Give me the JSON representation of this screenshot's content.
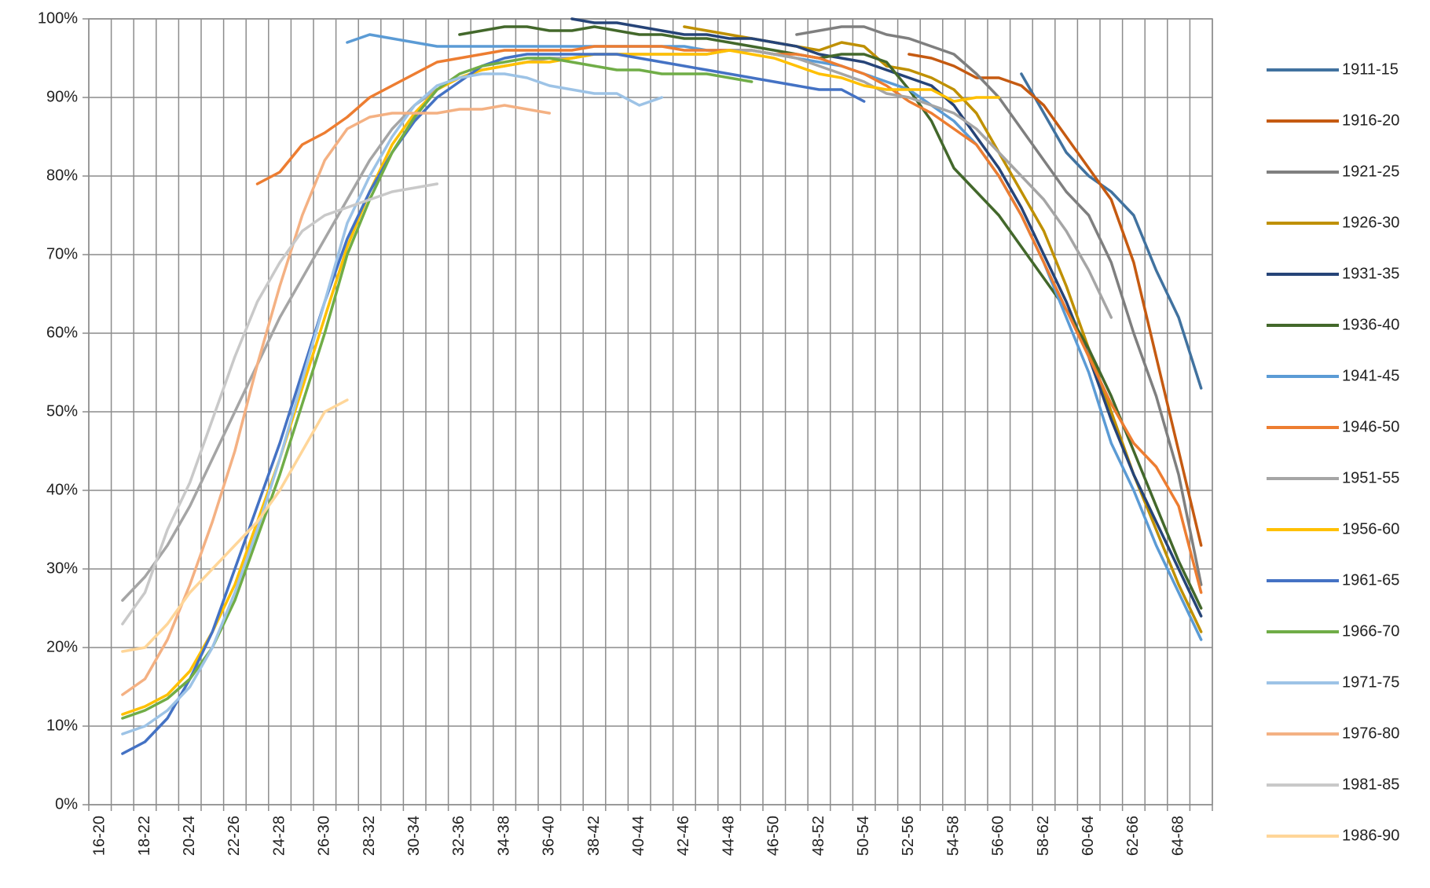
{
  "chart_data": {
    "type": "line",
    "categories": [
      "16-20",
      null,
      "18-22",
      null,
      "20-24",
      null,
      "22-26",
      null,
      "24-28",
      null,
      "26-30",
      null,
      "28-32",
      null,
      "30-34",
      null,
      "32-36",
      null,
      "34-38",
      null,
      "36-40",
      null,
      "38-42",
      null,
      "40-44",
      null,
      "42-46",
      null,
      "44-48",
      null,
      "46-50",
      null,
      "48-52",
      null,
      "50-54",
      null,
      "52-56",
      null,
      "54-58",
      null,
      "56-60",
      null,
      "58-62",
      null,
      "60-64",
      null,
      "62-66",
      null,
      "64-68",
      null
    ],
    "ylim": [
      0,
      100
    ],
    "yticks": [
      {
        "value": 0,
        "label": "0%"
      },
      {
        "value": 10,
        "label": "10%"
      },
      {
        "value": 20,
        "label": "20%"
      },
      {
        "value": 30,
        "label": "30%"
      },
      {
        "value": 40,
        "label": "40%"
      },
      {
        "value": 50,
        "label": "50%"
      },
      {
        "value": 60,
        "label": "60%"
      },
      {
        "value": 70,
        "label": "70%"
      },
      {
        "value": 80,
        "label": "80%"
      },
      {
        "value": 90,
        "label": "90%"
      },
      {
        "value": 100,
        "label": "100%"
      }
    ],
    "grid": true,
    "legend": "right",
    "series": [
      {
        "name": "1911-15",
        "color": "#41729f",
        "values": [
          null,
          null,
          null,
          null,
          null,
          null,
          null,
          null,
          null,
          null,
          null,
          null,
          null,
          null,
          null,
          null,
          null,
          null,
          null,
          null,
          null,
          null,
          null,
          null,
          null,
          null,
          null,
          null,
          null,
          null,
          null,
          null,
          null,
          null,
          null,
          null,
          null,
          null,
          null,
          null,
          null,
          93,
          88,
          83,
          80,
          78,
          75,
          68,
          62,
          53
        ]
      },
      {
        "name": "1916-20",
        "color": "#c55a11",
        "values": [
          null,
          null,
          null,
          null,
          null,
          null,
          null,
          null,
          null,
          null,
          null,
          null,
          null,
          null,
          null,
          null,
          null,
          null,
          null,
          null,
          null,
          null,
          null,
          null,
          null,
          null,
          null,
          null,
          null,
          null,
          null,
          null,
          null,
          null,
          null,
          null,
          95.5,
          95,
          94,
          92.5,
          92.5,
          91.5,
          89,
          85,
          81,
          77,
          69,
          57,
          45,
          33
        ]
      },
      {
        "name": "1921-25",
        "color": "#7f7f7f",
        "values": [
          null,
          null,
          null,
          null,
          null,
          null,
          null,
          null,
          null,
          null,
          null,
          null,
          null,
          null,
          null,
          null,
          null,
          null,
          null,
          null,
          null,
          null,
          null,
          null,
          null,
          null,
          null,
          null,
          null,
          null,
          null,
          98,
          98.5,
          99,
          99,
          98,
          97.5,
          96.5,
          95.5,
          93,
          90,
          86,
          82,
          78,
          75,
          69,
          60,
          52,
          42,
          28
        ]
      },
      {
        "name": "1926-30",
        "color": "#bf9000",
        "values": [
          null,
          null,
          null,
          null,
          null,
          null,
          null,
          null,
          null,
          null,
          null,
          null,
          null,
          null,
          null,
          null,
          null,
          null,
          null,
          null,
          null,
          null,
          null,
          null,
          null,
          null,
          99,
          98.5,
          98,
          97.5,
          97,
          96.5,
          96,
          97,
          96.5,
          94,
          93.5,
          92.5,
          91,
          88,
          83,
          78,
          73,
          66,
          58,
          50,
          42,
          35,
          28,
          22
        ]
      },
      {
        "name": "1931-35",
        "color": "#264478",
        "values": [
          null,
          null,
          null,
          null,
          null,
          null,
          null,
          null,
          null,
          null,
          null,
          null,
          null,
          null,
          null,
          null,
          null,
          null,
          null,
          null,
          null,
          100,
          99.5,
          99.5,
          99,
          98.5,
          98,
          98,
          97.5,
          97.5,
          97,
          96.5,
          95.5,
          95,
          94.5,
          93.5,
          92.5,
          91.5,
          89,
          85,
          81,
          76,
          70,
          64,
          57,
          49,
          42,
          36,
          30,
          24
        ]
      },
      {
        "name": "1936-40",
        "color": "#43682b",
        "values": [
          null,
          null,
          null,
          null,
          null,
          null,
          null,
          null,
          null,
          null,
          null,
          null,
          null,
          null,
          null,
          null,
          98,
          98.5,
          99,
          99,
          98.5,
          98.5,
          99,
          98.5,
          98,
          98,
          97.5,
          97.5,
          97,
          96.5,
          96,
          95.5,
          95,
          95.5,
          95.5,
          94.5,
          91,
          87,
          81,
          78,
          75,
          71,
          67,
          63,
          58,
          52,
          45,
          38,
          31,
          25
        ]
      },
      {
        "name": "1941-45",
        "color": "#5b9bd5",
        "values": [
          null,
          null,
          null,
          null,
          null,
          null,
          null,
          null,
          null,
          null,
          null,
          97,
          98,
          97.5,
          97,
          96.5,
          96.5,
          96.5,
          96.5,
          96.5,
          96.5,
          96.5,
          96.5,
          96.5,
          96.5,
          96.5,
          96.5,
          96,
          96,
          96,
          95.5,
          95,
          94.5,
          94,
          93,
          92,
          91,
          89,
          87,
          84,
          80,
          75,
          69,
          62,
          55,
          46,
          40,
          33,
          27,
          21
        ]
      },
      {
        "name": "1946-50",
        "color": "#ed7d31",
        "values": [
          null,
          null,
          null,
          null,
          null,
          null,
          null,
          79,
          80.5,
          84,
          85.5,
          87.5,
          90,
          91.5,
          93,
          94.5,
          95,
          95.5,
          96,
          96,
          96,
          96,
          96.5,
          96.5,
          96.5,
          96.5,
          96,
          96,
          96,
          96,
          95.5,
          95.5,
          95,
          94,
          93,
          91.5,
          89.5,
          88,
          86,
          84,
          80,
          75,
          69,
          63,
          57,
          51,
          46,
          43,
          38,
          27
        ]
      },
      {
        "name": "1951-55",
        "color": "#a5a5a5",
        "values": [
          null,
          26,
          29,
          33,
          38,
          44,
          50,
          56,
          62,
          67,
          72,
          77,
          82,
          86,
          89,
          91,
          92.5,
          93.5,
          94,
          94.5,
          95,
          95,
          95.5,
          95.5,
          95.5,
          95.5,
          95.5,
          95.5,
          96,
          96,
          95.5,
          95,
          94,
          93,
          92,
          90.5,
          90,
          89,
          88,
          86,
          83,
          80,
          77,
          73,
          68,
          62,
          null,
          null,
          null,
          null
        ]
      },
      {
        "name": "1956-60",
        "color": "#ffc000",
        "values": [
          null,
          11.5,
          12.5,
          14,
          17,
          22,
          28,
          36,
          44,
          53,
          62,
          71,
          78,
          84,
          88,
          91,
          92.5,
          93.5,
          94,
          94.5,
          94.5,
          95,
          95.5,
          95.5,
          95.5,
          95.5,
          95.5,
          95.5,
          96,
          95.5,
          95,
          94,
          93,
          92.5,
          91.5,
          91,
          91,
          91,
          89.5,
          90,
          90,
          null,
          null,
          null,
          null,
          null,
          null,
          null,
          null,
          null
        ]
      },
      {
        "name": "1961-65",
        "color": "#4472c4",
        "values": [
          null,
          6.5,
          8,
          11,
          16,
          22,
          30,
          38,
          46,
          55,
          64,
          72,
          78,
          83,
          87,
          90,
          92,
          94,
          95,
          95.5,
          95.5,
          95.5,
          95.5,
          95.5,
          95,
          94.5,
          94,
          93.5,
          93,
          92.5,
          92,
          91.5,
          91,
          91,
          89.5,
          null,
          null,
          null,
          null,
          null,
          null,
          null,
          null,
          null,
          null,
          null,
          null,
          null,
          null,
          null
        ]
      },
      {
        "name": "1966-70",
        "color": "#70ad47",
        "values": [
          null,
          11,
          12,
          13.5,
          16,
          20,
          26,
          34,
          42,
          51,
          60,
          70,
          77,
          83,
          87.5,
          91,
          93,
          94,
          94.5,
          95,
          95,
          94.5,
          94,
          93.5,
          93.5,
          93,
          93,
          93,
          92.5,
          92,
          null,
          null,
          null,
          null,
          null,
          null,
          null,
          null,
          null,
          null,
          null,
          null,
          null,
          null,
          null,
          null,
          null,
          null,
          null,
          null
        ]
      },
      {
        "name": "1971-75",
        "color": "#9dc3e6",
        "values": [
          null,
          9,
          10,
          12,
          15,
          20,
          27,
          35,
          44,
          54,
          64,
          74,
          80,
          85,
          89,
          91.5,
          92.5,
          93,
          93,
          92.5,
          91.5,
          91,
          90.5,
          90.5,
          89,
          90,
          null,
          null,
          null,
          null,
          null,
          null,
          null,
          null,
          null,
          null,
          null,
          null,
          null,
          null,
          null,
          null,
          null,
          null,
          null,
          null,
          null,
          null,
          null,
          null
        ]
      },
      {
        "name": "1976-80",
        "color": "#f4b183",
        "values": [
          null,
          14,
          16,
          21,
          28,
          36,
          45,
          56,
          66,
          75,
          82,
          86,
          87.5,
          88,
          88,
          88,
          88.5,
          88.5,
          89,
          88.5,
          88,
          null,
          null,
          null,
          null,
          null,
          null,
          null,
          null,
          null,
          null,
          null,
          null,
          null,
          null,
          null,
          null,
          null,
          null,
          null,
          null,
          null,
          null,
          null,
          null,
          null,
          null,
          null,
          null,
          null
        ]
      },
      {
        "name": "1981-85",
        "color": "#c9c9c9",
        "values": [
          null,
          23,
          27,
          35,
          41,
          49,
          57,
          64,
          69,
          73,
          75,
          76,
          77,
          78,
          78.5,
          79,
          null,
          null,
          null,
          null,
          null,
          null,
          null,
          null,
          null,
          null,
          null,
          null,
          null,
          null,
          null,
          null,
          null,
          null,
          null,
          null,
          null,
          null,
          null,
          null,
          null,
          null,
          null,
          null,
          null,
          null,
          null,
          null,
          null,
          null
        ]
      },
      {
        "name": "1986-90",
        "color": "#ffd699",
        "values": [
          null,
          19.5,
          20,
          23,
          27,
          30,
          33,
          36,
          40,
          45,
          50,
          51.5,
          null,
          null,
          null,
          null,
          null,
          null,
          null,
          null,
          null,
          null,
          null,
          null,
          null,
          null,
          null,
          null,
          null,
          null,
          null,
          null,
          null,
          null,
          null,
          null,
          null,
          null,
          null,
          null,
          null,
          null,
          null,
          null,
          null,
          null,
          null,
          null,
          null,
          null
        ]
      }
    ]
  }
}
